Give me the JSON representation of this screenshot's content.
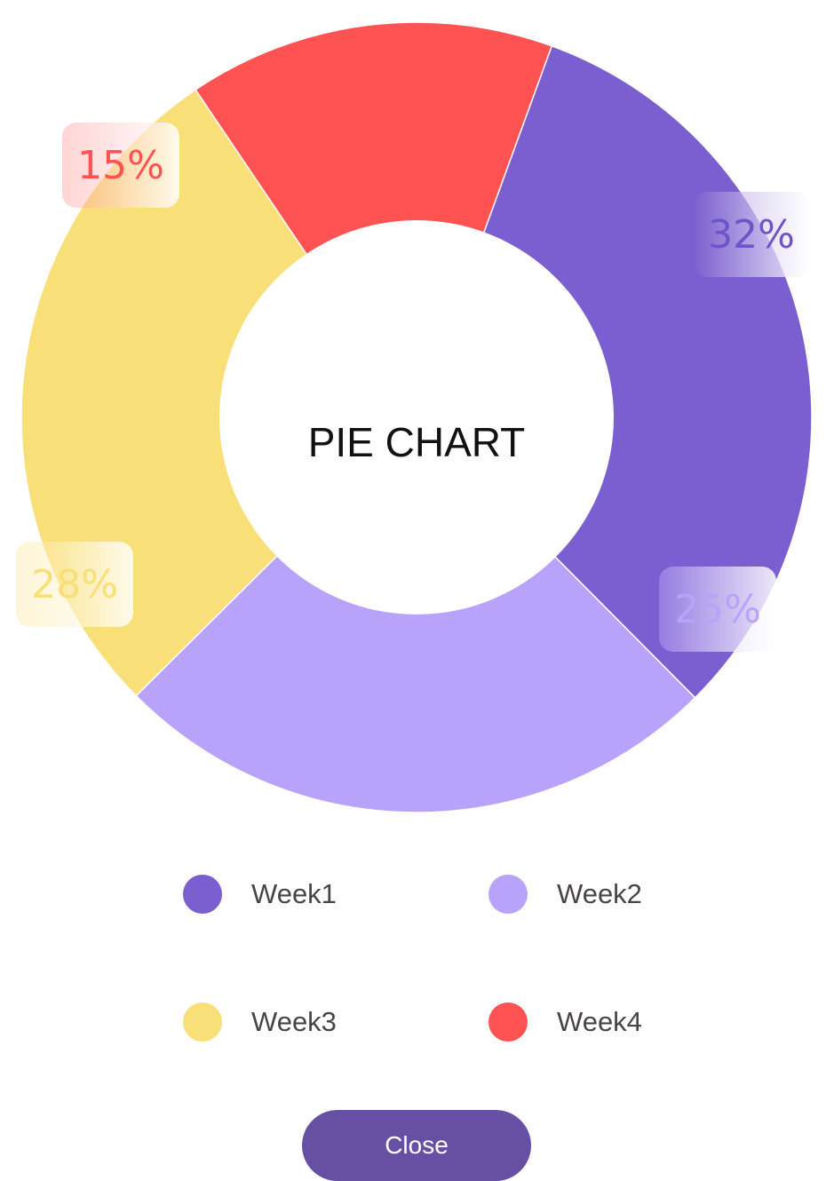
{
  "chart_data": {
    "type": "pie",
    "title": "PIE CHART",
    "categories": [
      "Week1",
      "Week2",
      "Week3",
      "Week4"
    ],
    "values": [
      32,
      25,
      28,
      15
    ],
    "value_labels": [
      "32%",
      "25%",
      "28%",
      "15%"
    ],
    "colors": [
      "#7b5ecf",
      "#b8a2fa",
      "#f9df77",
      "#ff5252"
    ],
    "donut": true,
    "start_angle_deg": -70,
    "direction": "clockwise"
  },
  "legend": {
    "items": [
      {
        "label": "Week1",
        "color": "#7b5ecf"
      },
      {
        "label": "Week2",
        "color": "#b8a2fa"
      },
      {
        "label": "Week3",
        "color": "#f9df77"
      },
      {
        "label": "Week4",
        "color": "#ff5252"
      }
    ]
  },
  "footer": {
    "close_label": "Close"
  }
}
